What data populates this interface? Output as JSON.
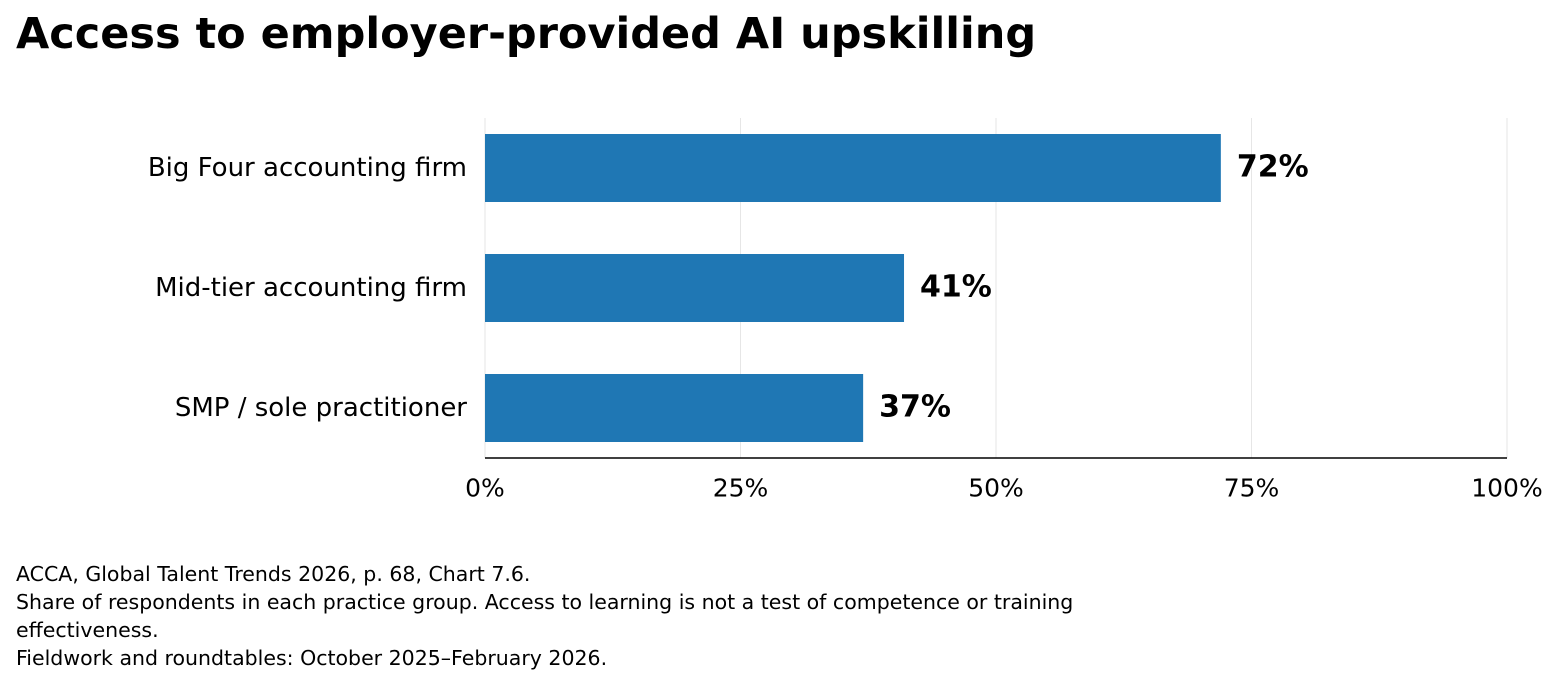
{
  "title": "Access to employer-provided AI upskilling",
  "chart_data": {
    "type": "bar",
    "orientation": "horizontal",
    "categories": [
      "Big Four accounting firm",
      "Mid-tier accounting firm",
      "SMP / sole practitioner"
    ],
    "values": [
      72,
      41,
      37
    ],
    "value_labels": [
      "72%",
      "41%",
      "37%"
    ],
    "xlim": [
      0,
      100
    ],
    "xticks": [
      0,
      25,
      50,
      75,
      100
    ],
    "xtick_labels": [
      "0%",
      "25%",
      "50%",
      "75%",
      "100%"
    ],
    "xlabel": "",
    "ylabel": "",
    "grid": "vertical",
    "legend": "none",
    "bar_color": "#1f77b4"
  },
  "notes": [
    "ACCA, Global Talent Trends 2026, p. 68, Chart 7.6.",
    "Share of respondents in each practice group. Access to learning is not a test of competence or training",
    "effectiveness.",
    "Fieldwork and roundtables: October 2025–February 2026."
  ]
}
